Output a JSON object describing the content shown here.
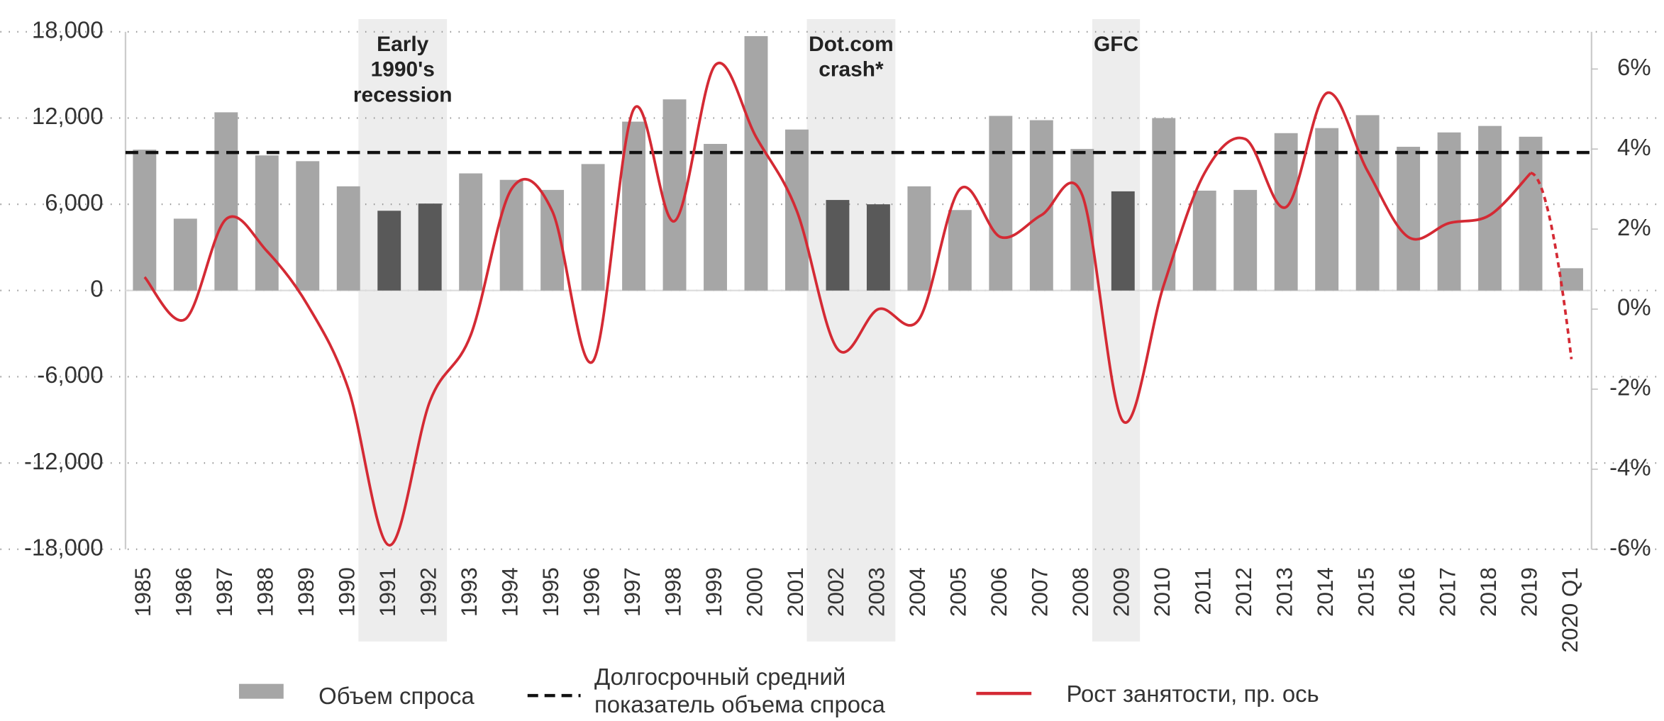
{
  "chart_data": {
    "type": "bar_line",
    "categories": [
      "1985",
      "1986",
      "1987",
      "1988",
      "1989",
      "1990",
      "1991",
      "1992",
      "1993",
      "1994",
      "1995",
      "1996",
      "1997",
      "1998",
      "1999",
      "2000",
      "2001",
      "2002",
      "2003",
      "2004",
      "2005",
      "2006",
      "2007",
      "2008",
      "2009",
      "2010",
      "2011",
      "2012",
      "2013",
      "2014",
      "2015",
      "2016",
      "2017",
      "2018",
      "2019",
      "2020 Q1"
    ],
    "series": [
      {
        "name": "Объем спроса",
        "type": "bar",
        "color": "#a6a6a6",
        "highlight_color": "#595959",
        "values": [
          9800,
          5000,
          12400,
          9400,
          9000,
          7250,
          5550,
          6050,
          8150,
          7700,
          7000,
          8800,
          11750,
          13300,
          10200,
          17700,
          11200,
          6300,
          6000,
          7250,
          5600,
          12150,
          11850,
          9850,
          6900,
          12000,
          6950,
          7000,
          10950,
          11300,
          12200,
          10000,
          11000,
          11450,
          10700,
          1550
        ]
      },
      {
        "name": "Рост занятости, пр. ось",
        "type": "line",
        "axis": "y2",
        "color": "#d42a34",
        "last_segment_dashed": true,
        "values": [
          0.8,
          -0.25,
          2.25,
          1.45,
          0.1,
          -2.0,
          -5.9,
          -2.3,
          -0.65,
          3.0,
          2.45,
          -1.3,
          5.0,
          2.2,
          6.1,
          4.3,
          2.45,
          -1.0,
          0.0,
          -0.25,
          3.0,
          1.8,
          2.35,
          2.85,
          -2.8,
          0.6,
          3.4,
          4.25,
          2.55,
          5.4,
          3.45,
          1.8,
          2.15,
          2.35,
          3.4,
          -1.25
        ]
      }
    ],
    "reference_line": {
      "name": "Долгосрочный средний показатель объема спроса",
      "value": 9600,
      "color": "#111111"
    },
    "shaded_regions": [
      {
        "label": [
          "Early",
          "1990's",
          "recession"
        ],
        "start": "1991",
        "end": "1992"
      },
      {
        "label": [
          "Dot.com",
          "crash*"
        ],
        "start": "2002",
        "end": "2003"
      },
      {
        "label": [
          "GFC"
        ],
        "start": "2009",
        "end": "2009"
      }
    ],
    "ylim": [
      -18000,
      18000
    ],
    "yticks": [
      {
        "value": -18000,
        "label": "-18,000"
      },
      {
        "value": -12000,
        "label": "-12,000"
      },
      {
        "value": -6000,
        "label": "-6,000"
      },
      0,
      {
        "value": 6000,
        "label": "6,000"
      },
      {
        "value": 12000,
        "label": "12,000"
      },
      {
        "value": 18000,
        "label": "18,000"
      }
    ],
    "y2lim": [
      -6,
      6.93
    ],
    "y2ticks": [
      {
        "value": -6,
        "label": "-6%"
      },
      {
        "value": -4,
        "label": "-4%"
      },
      {
        "value": -2,
        "label": "-2%"
      },
      {
        "value": 0,
        "label": "0%"
      },
      {
        "value": 2,
        "label": "2%"
      },
      {
        "value": 4,
        "label": "4%"
      },
      {
        "value": 6,
        "label": "6%"
      }
    ],
    "grid": true
  }
}
